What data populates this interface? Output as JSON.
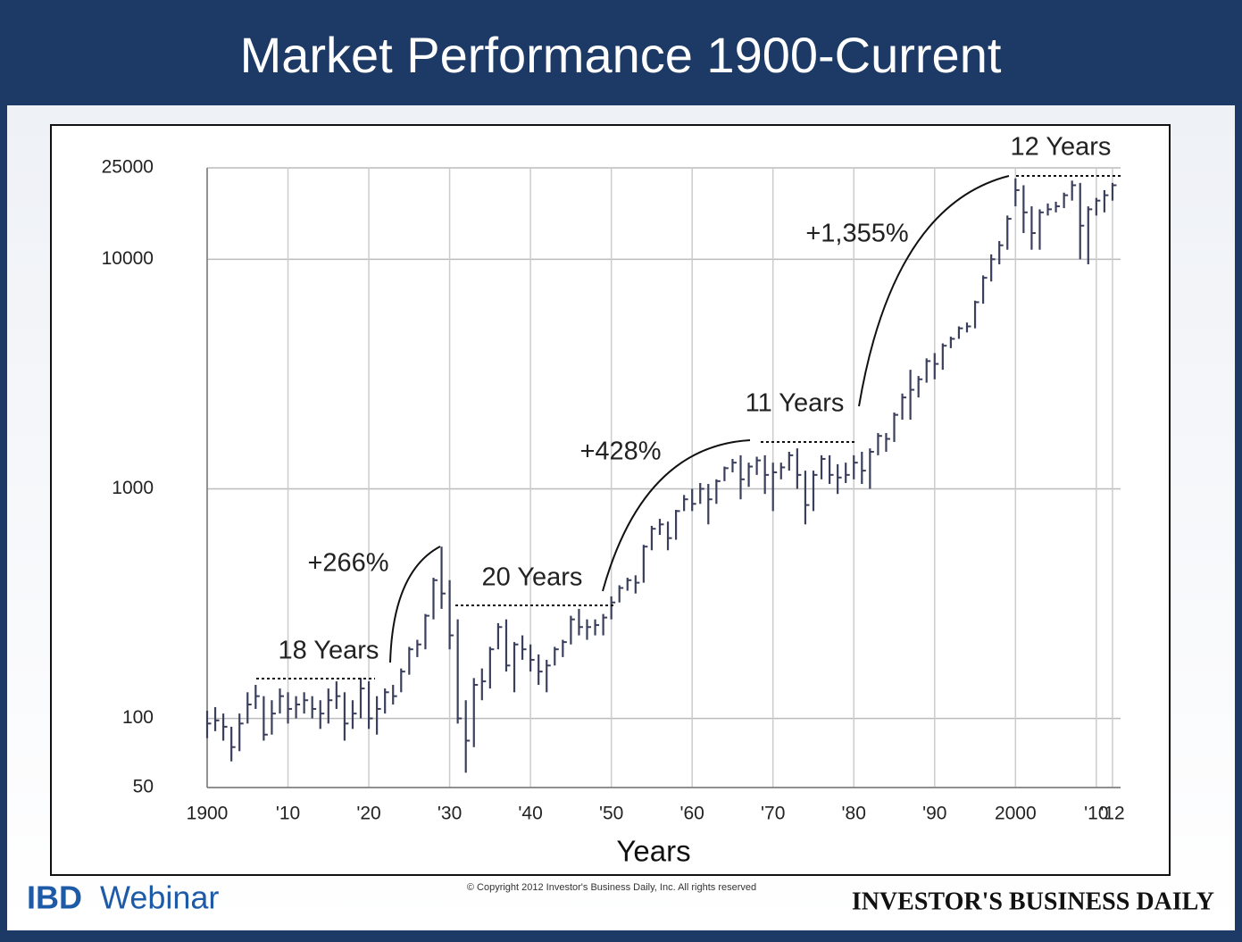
{
  "chart_data": {
    "type": "hlc",
    "title": "Market Performance 1900-Current",
    "x_label": "Years",
    "log_scale": true,
    "grid": true,
    "color": "#3a3f5c",
    "x": [
      1900,
      1901,
      1902,
      1903,
      1904,
      1905,
      1906,
      1907,
      1908,
      1909,
      1910,
      1911,
      1912,
      1913,
      1914,
      1915,
      1916,
      1917,
      1918,
      1919,
      1920,
      1921,
      1922,
      1923,
      1924,
      1925,
      1926,
      1927,
      1928,
      1929,
      1930,
      1931,
      1932,
      1933,
      1934,
      1935,
      1936,
      1937,
      1938,
      1939,
      1940,
      1941,
      1942,
      1943,
      1944,
      1945,
      1946,
      1947,
      1948,
      1949,
      1950,
      1951,
      1952,
      1953,
      1954,
      1955,
      1956,
      1957,
      1958,
      1959,
      1960,
      1961,
      1962,
      1963,
      1964,
      1965,
      1966,
      1967,
      1968,
      1969,
      1970,
      1971,
      1972,
      1973,
      1974,
      1975,
      1976,
      1977,
      1978,
      1979,
      1980,
      1981,
      1982,
      1983,
      1984,
      1985,
      1986,
      1987,
      1988,
      1989,
      1990,
      1991,
      1992,
      1993,
      1994,
      1995,
      1996,
      1997,
      1998,
      1999,
      2000,
      2001,
      2002,
      2003,
      2004,
      2005,
      2006,
      2007,
      2008,
      2009,
      2010,
      2011,
      2012
    ],
    "high": [
      108,
      112,
      105,
      92,
      105,
      130,
      140,
      125,
      120,
      135,
      130,
      125,
      130,
      125,
      120,
      135,
      145,
      130,
      120,
      150,
      145,
      125,
      135,
      140,
      165,
      205,
      220,
      285,
      410,
      560,
      400,
      270,
      120,
      150,
      165,
      205,
      260,
      270,
      215,
      230,
      210,
      190,
      180,
      205,
      220,
      280,
      300,
      270,
      270,
      285,
      340,
      380,
      410,
      420,
      570,
      690,
      740,
      720,
      810,
      940,
      1000,
      1060,
      1050,
      1100,
      1250,
      1350,
      1400,
      1300,
      1380,
      1400,
      1300,
      1300,
      1450,
      1500,
      1200,
      1200,
      1400,
      1400,
      1280,
      1300,
      1400,
      1450,
      1500,
      1750,
      1750,
      2150,
      2600,
      3300,
      3100,
      3700,
      3900,
      4300,
      4600,
      5100,
      5300,
      6600,
      8500,
      10500,
      12000,
      15500,
      22500,
      21000,
      17000,
      16500,
      17500,
      17800,
      19500,
      22000,
      21500,
      17000,
      18500,
      20000,
      21500
    ],
    "low": [
      82,
      88,
      80,
      65,
      72,
      95,
      110,
      80,
      85,
      105,
      95,
      100,
      105,
      100,
      90,
      95,
      110,
      80,
      90,
      100,
      90,
      85,
      105,
      115,
      130,
      155,
      185,
      200,
      270,
      300,
      200,
      95,
      58,
      75,
      120,
      135,
      200,
      160,
      130,
      180,
      160,
      140,
      130,
      170,
      185,
      210,
      230,
      220,
      230,
      230,
      270,
      320,
      360,
      350,
      390,
      540,
      630,
      540,
      600,
      800,
      800,
      860,
      700,
      860,
      1080,
      1180,
      900,
      1020,
      1150,
      950,
      800,
      1100,
      1200,
      1000,
      700,
      800,
      1100,
      1050,
      950,
      1060,
      1100,
      1050,
      1000,
      1400,
      1450,
      1600,
      2000,
      2000,
      2500,
      2900,
      3000,
      3300,
      4100,
      4500,
      4800,
      5000,
      6400,
      8000,
      9500,
      11000,
      17000,
      13000,
      11000,
      11000,
      15500,
      16000,
      16700,
      18000,
      10000,
      9500,
      15500,
      16000,
      18000
    ],
    "close": [
      95,
      98,
      92,
      75,
      95,
      115,
      125,
      85,
      105,
      125,
      110,
      115,
      120,
      110,
      105,
      120,
      125,
      95,
      105,
      135,
      100,
      110,
      130,
      125,
      160,
      200,
      210,
      280,
      400,
      350,
      230,
      100,
      80,
      140,
      145,
      200,
      250,
      170,
      210,
      200,
      180,
      160,
      170,
      200,
      215,
      270,
      250,
      250,
      255,
      275,
      320,
      370,
      400,
      390,
      560,
      670,
      700,
      610,
      800,
      900,
      860,
      1000,
      900,
      1080,
      1230,
      1300,
      1100,
      1250,
      1330,
      1150,
      1180,
      1240,
      1400,
      1150,
      850,
      1150,
      1350,
      1150,
      1120,
      1150,
      1300,
      1200,
      1450,
      1700,
      1650,
      2100,
      2500,
      2700,
      3000,
      3600,
      3500,
      4200,
      4500,
      5000,
      5100,
      6500,
      8300,
      10000,
      11500,
      15000,
      20000,
      16000,
      13000,
      16000,
      16500,
      17000,
      19000,
      21000,
      14000,
      16500,
      18000,
      19000,
      21000
    ],
    "xlim": [
      1900,
      2013
    ],
    "xticks": [
      1900,
      {
        "value": 1910,
        "label": "'10"
      },
      {
        "value": 1920,
        "label": "'20"
      },
      {
        "value": 1930,
        "label": "'30"
      },
      {
        "value": 1940,
        "label": "'40"
      },
      {
        "value": 1950,
        "label": "'50"
      },
      {
        "value": 1960,
        "label": "'60"
      },
      {
        "value": 1970,
        "label": "'70"
      },
      {
        "value": 1980,
        "label": "'80"
      },
      {
        "value": 1990,
        "label": "'90"
      },
      2000,
      {
        "value": 2010,
        "label": "'10"
      },
      {
        "value": 2012,
        "label": "'12"
      }
    ],
    "ylim": [
      50,
      25000
    ],
    "yticks": [
      50,
      100,
      1000,
      10000,
      25000
    ],
    "annotations": [
      "18 Years",
      "+266%",
      "20 Years",
      "+428%",
      "11 Years",
      "+1,355%",
      "12 Years"
    ]
  },
  "footer": {
    "brand": "IBD",
    "brand_suffix": "Webinar",
    "copyright": "© Copyright 2012 Investor's Business Daily, Inc.  All rights reserved",
    "publisher": "INVESTOR'S BUSINESS DAILY"
  }
}
